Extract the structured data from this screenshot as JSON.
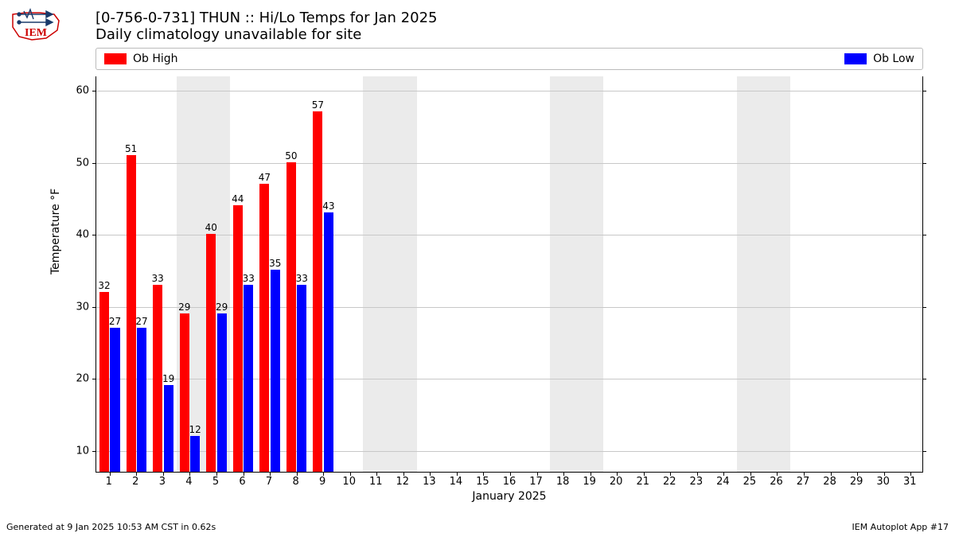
{
  "logo": {
    "label": "IEM",
    "stroke": "#cc0000"
  },
  "title": {
    "line1": "[0-756-0-731] THUN :: Hi/Lo Temps for Jan 2025",
    "line2": "Daily climatology unavailable for site"
  },
  "legend": {
    "high": {
      "label": "Ob High",
      "color": "#ff0000"
    },
    "low": {
      "label": "Ob Low",
      "color": "#0000ff"
    }
  },
  "chart": {
    "type": "bar",
    "xlabel": "January 2025",
    "ylabel": "Temperature °F",
    "ylim": [
      7,
      62
    ],
    "yticks": [
      10,
      20,
      30,
      40,
      50,
      60
    ],
    "xlim": [
      0.5,
      31.5
    ],
    "xticks": [
      1,
      2,
      3,
      4,
      5,
      6,
      7,
      8,
      9,
      10,
      11,
      12,
      13,
      14,
      15,
      16,
      17,
      18,
      19,
      20,
      21,
      22,
      23,
      24,
      25,
      26,
      27,
      28,
      29,
      30,
      31
    ],
    "weekend_bands": [
      [
        3.5,
        5.5
      ],
      [
        10.5,
        12.5
      ],
      [
        17.5,
        19.5
      ],
      [
        24.5,
        26.5
      ]
    ],
    "weekend_color": "#ebebeb",
    "grid_color": "#c8c8c8",
    "background_color": "#ffffff",
    "bar_width": 0.36,
    "bar_gap": 0.04,
    "days": [
      1,
      2,
      3,
      4,
      5,
      6,
      7,
      8,
      9
    ],
    "high_values": [
      32,
      51,
      33,
      29,
      40,
      44,
      47,
      50,
      57
    ],
    "low_values": [
      27,
      27,
      19,
      12,
      29,
      33,
      35,
      33,
      43
    ],
    "high_color": "#ff0000",
    "low_color": "#0000ff"
  },
  "footer": {
    "left": "Generated at 9 Jan 2025 10:53 AM CST in 0.62s",
    "right": "IEM Autoplot App #17"
  }
}
